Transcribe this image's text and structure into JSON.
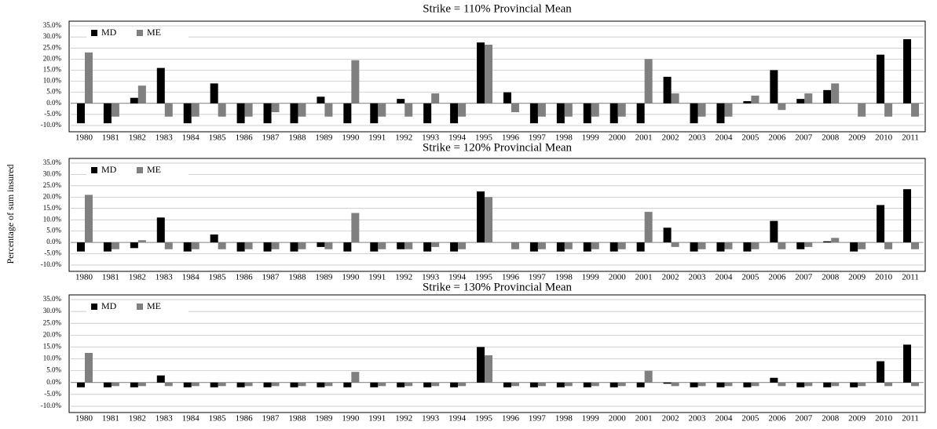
{
  "chart_data": [
    {
      "type": "bar",
      "title": "Strike = 110% Provincial Mean",
      "categories": [
        "1980",
        "1981",
        "1982",
        "1983",
        "1984",
        "1985",
        "1986",
        "1987",
        "1988",
        "1989",
        "1990",
        "1991",
        "1992",
        "1993",
        "1994",
        "1995",
        "1996",
        "1997",
        "1998",
        "1999",
        "2000",
        "2001",
        "2002",
        "2003",
        "2004",
        "2005",
        "2006",
        "2007",
        "2008",
        "2009",
        "2010",
        "2011"
      ],
      "series": [
        {
          "name": "MD",
          "color": "#000000",
          "values": [
            -9,
            -9,
            2.5,
            16,
            -9,
            9,
            -9,
            -9,
            -9,
            3,
            -9,
            -9,
            2,
            -9,
            -9,
            27.5,
            5,
            -9,
            -9,
            -9,
            -9,
            -9,
            12,
            -9,
            -9,
            1,
            15,
            2,
            6,
            0,
            22,
            29
          ]
        },
        {
          "name": "ME",
          "color": "#808080",
          "values": [
            23,
            -6,
            8,
            -6,
            -6,
            -6,
            -6,
            -4,
            -6,
            -6,
            19.5,
            -6,
            -6,
            4.5,
            -6,
            26.5,
            -4,
            -6,
            -6,
            -6,
            -6,
            20,
            4.5,
            -6,
            -6,
            3.5,
            -3,
            4.5,
            9,
            -6,
            -6,
            -6
          ]
        }
      ],
      "ylim": [
        -10,
        35
      ],
      "yticks": [
        {
          "value": -10,
          "label": "-10.0%"
        },
        {
          "value": -5,
          "label": "-5.0%"
        },
        {
          "value": 0,
          "label": "0.0%"
        },
        {
          "value": 5,
          "label": "5.0%"
        },
        {
          "value": 10,
          "label": "10.0%"
        },
        {
          "value": 15,
          "label": "15.0%"
        },
        {
          "value": 20,
          "label": "20.0%"
        },
        {
          "value": 25,
          "label": "25.0%"
        },
        {
          "value": 30,
          "label": "30.0%"
        },
        {
          "value": 35,
          "label": "35.0%"
        }
      ],
      "grid": true,
      "legend": "top-left"
    },
    {
      "type": "bar",
      "title": "Strike = 120% Provincial Mean",
      "ylabel": "Percentage of sum insured",
      "categories": [
        "1980",
        "1981",
        "1982",
        "1983",
        "1984",
        "1985",
        "1986",
        "1987",
        "1988",
        "1989",
        "1990",
        "1991",
        "1992",
        "1993",
        "1994",
        "1995",
        "1996",
        "1997",
        "1998",
        "1999",
        "2000",
        "2001",
        "2002",
        "2003",
        "2004",
        "2005",
        "2006",
        "2007",
        "2008",
        "2009",
        "2010",
        "2011"
      ],
      "series": [
        {
          "name": "MD",
          "color": "#000000",
          "values": [
            -4,
            -4,
            -2.5,
            11,
            -4,
            3.5,
            -4,
            -4,
            -4,
            -2,
            -4,
            -4,
            -3,
            -4,
            -4,
            22.5,
            0,
            -4,
            -4,
            -4,
            -4,
            -4,
            6.5,
            -4,
            -4,
            -4,
            9.5,
            -3,
            0.5,
            -4,
            16.5,
            23.5
          ]
        },
        {
          "name": "ME",
          "color": "#808080",
          "values": [
            21,
            -3,
            1,
            -3,
            -3,
            -3,
            -3,
            -3,
            -3,
            -3,
            13,
            -3,
            -3,
            -2,
            -3,
            20,
            -3,
            -3,
            -3,
            -3,
            -3,
            13.5,
            -2,
            -3,
            -3,
            -3,
            -3,
            -2,
            2,
            -3,
            -3,
            -3
          ]
        }
      ],
      "ylim": [
        -10,
        35
      ],
      "yticks": [
        {
          "value": -10,
          "label": "-10.0%"
        },
        {
          "value": -5,
          "label": "-5.0%"
        },
        {
          "value": 0,
          "label": "0.0%"
        },
        {
          "value": 5,
          "label": "5.0%"
        },
        {
          "value": 10,
          "label": "10.0%"
        },
        {
          "value": 15,
          "label": "15.0%"
        },
        {
          "value": 20,
          "label": "20.0%"
        },
        {
          "value": 25,
          "label": "25.0%"
        },
        {
          "value": 30,
          "label": "30.0%"
        },
        {
          "value": 35,
          "label": "35.0%"
        }
      ],
      "grid": true,
      "legend": "top-left"
    },
    {
      "type": "bar",
      "title": "Strike = 130% Provincial Mean",
      "categories": [
        "1980",
        "1981",
        "1982",
        "1983",
        "1984",
        "1985",
        "1986",
        "1987",
        "1988",
        "1989",
        "1990",
        "1991",
        "1992",
        "1993",
        "1994",
        "1995",
        "1996",
        "1997",
        "1998",
        "1999",
        "2000",
        "2001",
        "2002",
        "2003",
        "2004",
        "2005",
        "2006",
        "2007",
        "2008",
        "2009",
        "2010",
        "2011"
      ],
      "series": [
        {
          "name": "MD",
          "color": "#000000",
          "values": [
            -2,
            -2,
            -2,
            3,
            -2,
            -2,
            -2,
            -2,
            -2,
            -2,
            -2,
            -2,
            -2,
            -2,
            -2,
            15,
            -2,
            -2,
            -2,
            -2,
            -2,
            -2,
            -0.5,
            -2,
            -2,
            -2,
            2,
            -2,
            -2,
            -2,
            9,
            16
          ]
        },
        {
          "name": "ME",
          "color": "#808080",
          "values": [
            12.5,
            -1.5,
            -1.5,
            -1.5,
            -1.5,
            -1.5,
            -1.5,
            -1.5,
            -1.5,
            -1.5,
            4.5,
            -1.5,
            -1.5,
            -1.5,
            -1.5,
            11.5,
            -1.5,
            -1.5,
            -1.5,
            -1.5,
            -1.5,
            5,
            -1.5,
            -1.5,
            -1.5,
            -1.5,
            -1.5,
            -1.5,
            -1.5,
            -1.5,
            -1.5,
            -1.5
          ]
        }
      ],
      "ylim": [
        -10,
        35
      ],
      "yticks": [
        {
          "value": -10,
          "label": "-10.0%"
        },
        {
          "value": -5,
          "label": "-5.0%"
        },
        {
          "value": 0,
          "label": "0.0%"
        },
        {
          "value": 5,
          "label": "5.0%"
        },
        {
          "value": 10,
          "label": "10.0%"
        },
        {
          "value": 15,
          "label": "15.0%"
        },
        {
          "value": 20,
          "label": "20.0%"
        },
        {
          "value": 25,
          "label": "25.0%"
        },
        {
          "value": 30,
          "label": "30.0%"
        },
        {
          "value": 35,
          "label": "35.0%"
        }
      ],
      "grid": true,
      "legend": "top-left"
    }
  ]
}
